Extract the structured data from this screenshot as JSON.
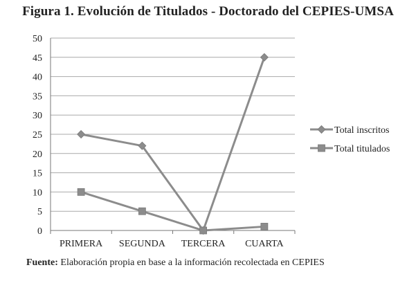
{
  "title": "Figura 1. Evolución de Titulados - Doctorado del CEPIES-UMSA",
  "footer": {
    "label": "Fuente:",
    "text": "Elaboración propia en base a la información recolectada en CEPIES"
  },
  "chart_data": {
    "type": "line",
    "categories": [
      "PRIMERA",
      "SEGUNDA",
      "TERCERA",
      "CUARTA"
    ],
    "ylim": [
      0,
      50
    ],
    "yticks": [
      0,
      5,
      10,
      15,
      20,
      25,
      30,
      35,
      40,
      45,
      50
    ],
    "grid": true,
    "legend_position": "right",
    "line_color": "#8c8c8c",
    "series": [
      {
        "name": "Total inscritos",
        "marker": "diamond",
        "values": [
          25,
          22,
          0,
          45
        ]
      },
      {
        "name": "Total titulados",
        "marker": "square",
        "values": [
          10,
          5,
          0,
          1
        ]
      }
    ]
  }
}
